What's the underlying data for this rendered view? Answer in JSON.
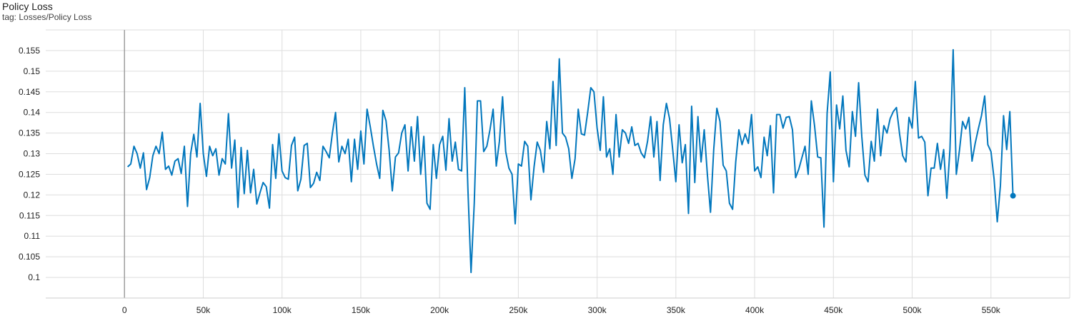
{
  "card": {
    "title": "Policy Loss",
    "tag": "tag: Losses/Policy Loss"
  },
  "chart_data": {
    "type": "line",
    "title": "Policy Loss",
    "xlabel": "",
    "ylabel": "",
    "xlim": [
      -50000,
      600000
    ],
    "ylim": [
      0.095,
      0.16
    ],
    "xticks": [
      0,
      50000,
      100000,
      150000,
      200000,
      250000,
      300000,
      350000,
      400000,
      450000,
      500000,
      550000
    ],
    "xtick_labels": [
      "0",
      "50k",
      "100k",
      "150k",
      "200k",
      "250k",
      "300k",
      "350k",
      "400k",
      "450k",
      "500k",
      "550k"
    ],
    "yticks": [
      0.1,
      0.105,
      0.11,
      0.115,
      0.12,
      0.125,
      0.13,
      0.135,
      0.14,
      0.145,
      0.15,
      0.155
    ],
    "ytick_labels": [
      "0.1",
      "0.105",
      "0.11",
      "0.115",
      "0.12",
      "0.125",
      "0.13",
      "0.135",
      "0.14",
      "0.145",
      "0.15",
      "0.155"
    ],
    "grid": true,
    "series_color": "#0277bd",
    "grid_color": "#dddddd",
    "series": [
      {
        "points": [
          [
            2000,
            0.1268
          ],
          [
            4000,
            0.1275
          ],
          [
            6000,
            0.1318
          ],
          [
            8000,
            0.13
          ],
          [
            10000,
            0.1265
          ],
          [
            12000,
            0.1302
          ],
          [
            14000,
            0.1213
          ],
          [
            16000,
            0.1242
          ],
          [
            18000,
            0.1295
          ],
          [
            20000,
            0.1318
          ],
          [
            22000,
            0.13
          ],
          [
            24000,
            0.1352
          ],
          [
            26000,
            0.1262
          ],
          [
            28000,
            0.127
          ],
          [
            30000,
            0.1248
          ],
          [
            32000,
            0.1282
          ],
          [
            34000,
            0.1288
          ],
          [
            36000,
            0.1252
          ],
          [
            38000,
            0.1318
          ],
          [
            40000,
            0.1172
          ],
          [
            42000,
            0.13
          ],
          [
            44000,
            0.1347
          ],
          [
            46000,
            0.1292
          ],
          [
            48000,
            0.1422
          ],
          [
            50000,
            0.13
          ],
          [
            52000,
            0.1245
          ],
          [
            54000,
            0.1318
          ],
          [
            56000,
            0.1295
          ],
          [
            58000,
            0.1312
          ],
          [
            60000,
            0.1248
          ],
          [
            62000,
            0.1288
          ],
          [
            64000,
            0.1275
          ],
          [
            66000,
            0.1397
          ],
          [
            68000,
            0.1265
          ],
          [
            70000,
            0.1333
          ],
          [
            72000,
            0.117
          ],
          [
            74000,
            0.1315
          ],
          [
            76000,
            0.1203
          ],
          [
            78000,
            0.1308
          ],
          [
            80000,
            0.1205
          ],
          [
            82000,
            0.1262
          ],
          [
            84000,
            0.1178
          ],
          [
            86000,
            0.1205
          ],
          [
            88000,
            0.123
          ],
          [
            90000,
            0.122
          ],
          [
            92000,
            0.1168
          ],
          [
            94000,
            0.1322
          ],
          [
            96000,
            0.124
          ],
          [
            98000,
            0.1348
          ],
          [
            100000,
            0.1258
          ],
          [
            102000,
            0.1242
          ],
          [
            104000,
            0.1238
          ],
          [
            106000,
            0.132
          ],
          [
            108000,
            0.134
          ],
          [
            110000,
            0.121
          ],
          [
            112000,
            0.1238
          ],
          [
            114000,
            0.132
          ],
          [
            116000,
            0.1325
          ],
          [
            118000,
            0.1218
          ],
          [
            120000,
            0.1228
          ],
          [
            122000,
            0.1255
          ],
          [
            124000,
            0.1235
          ],
          [
            126000,
            0.1318
          ],
          [
            128000,
            0.1305
          ],
          [
            130000,
            0.129
          ],
          [
            132000,
            0.135
          ],
          [
            134000,
            0.14
          ],
          [
            136000,
            0.128
          ],
          [
            138000,
            0.1318
          ],
          [
            140000,
            0.13
          ],
          [
            142000,
            0.1335
          ],
          [
            144000,
            0.1232
          ],
          [
            146000,
            0.1335
          ],
          [
            148000,
            0.1262
          ],
          [
            150000,
            0.1355
          ],
          [
            152000,
            0.1275
          ],
          [
            154000,
            0.1408
          ],
          [
            156000,
            0.1365
          ],
          [
            158000,
            0.1318
          ],
          [
            160000,
            0.1275
          ],
          [
            162000,
            0.124
          ],
          [
            164000,
            0.1405
          ],
          [
            166000,
            0.138
          ],
          [
            168000,
            0.1308
          ],
          [
            170000,
            0.121
          ],
          [
            172000,
            0.1292
          ],
          [
            174000,
            0.1302
          ],
          [
            176000,
            0.135
          ],
          [
            178000,
            0.137
          ],
          [
            180000,
            0.1258
          ],
          [
            182000,
            0.1365
          ],
          [
            184000,
            0.1282
          ],
          [
            186000,
            0.139
          ],
          [
            188000,
            0.125
          ],
          [
            190000,
            0.1342
          ],
          [
            192000,
            0.118
          ],
          [
            194000,
            0.1165
          ],
          [
            196000,
            0.1322
          ],
          [
            198000,
            0.124
          ],
          [
            200000,
            0.1322
          ],
          [
            202000,
            0.1342
          ],
          [
            204000,
            0.126
          ],
          [
            206000,
            0.1385
          ],
          [
            208000,
            0.1282
          ],
          [
            210000,
            0.1328
          ],
          [
            212000,
            0.1262
          ],
          [
            214000,
            0.1258
          ],
          [
            216000,
            0.146
          ],
          [
            218000,
            0.1215
          ],
          [
            220000,
            0.1012
          ],
          [
            222000,
            0.118
          ],
          [
            224000,
            0.1428
          ],
          [
            226000,
            0.1428
          ],
          [
            228000,
            0.1305
          ],
          [
            230000,
            0.1318
          ],
          [
            232000,
            0.1358
          ],
          [
            234000,
            0.1408
          ],
          [
            236000,
            0.127
          ],
          [
            238000,
            0.133
          ],
          [
            240000,
            0.1438
          ],
          [
            242000,
            0.1305
          ],
          [
            244000,
            0.1265
          ],
          [
            246000,
            0.125
          ],
          [
            248000,
            0.113
          ],
          [
            250000,
            0.1275
          ],
          [
            252000,
            0.127
          ],
          [
            254000,
            0.133
          ],
          [
            256000,
            0.1318
          ],
          [
            258000,
            0.1188
          ],
          [
            260000,
            0.1268
          ],
          [
            262000,
            0.1328
          ],
          [
            264000,
            0.1308
          ],
          [
            266000,
            0.1255
          ],
          [
            268000,
            0.1378
          ],
          [
            270000,
            0.1312
          ],
          [
            272000,
            0.1475
          ],
          [
            274000,
            0.132
          ],
          [
            276000,
            0.153
          ],
          [
            278000,
            0.135
          ],
          [
            280000,
            0.134
          ],
          [
            282000,
            0.1312
          ],
          [
            284000,
            0.124
          ],
          [
            286000,
            0.1288
          ],
          [
            288000,
            0.1408
          ],
          [
            290000,
            0.1348
          ],
          [
            292000,
            0.1345
          ],
          [
            294000,
            0.14
          ],
          [
            296000,
            0.146
          ],
          [
            298000,
            0.145
          ],
          [
            300000,
            0.1362
          ],
          [
            302000,
            0.1308
          ],
          [
            304000,
            0.1438
          ],
          [
            306000,
            0.1292
          ],
          [
            308000,
            0.1312
          ],
          [
            310000,
            0.125
          ],
          [
            312000,
            0.1395
          ],
          [
            314000,
            0.1292
          ],
          [
            316000,
            0.1358
          ],
          [
            318000,
            0.135
          ],
          [
            320000,
            0.1325
          ],
          [
            322000,
            0.1365
          ],
          [
            324000,
            0.132
          ],
          [
            326000,
            0.1325
          ],
          [
            328000,
            0.1302
          ],
          [
            330000,
            0.129
          ],
          [
            332000,
            0.133
          ],
          [
            334000,
            0.139
          ],
          [
            336000,
            0.1292
          ],
          [
            338000,
            0.1378
          ],
          [
            340000,
            0.1235
          ],
          [
            342000,
            0.137
          ],
          [
            344000,
            0.1422
          ],
          [
            346000,
            0.1385
          ],
          [
            348000,
            0.131
          ],
          [
            350000,
            0.1232
          ],
          [
            352000,
            0.137
          ],
          [
            354000,
            0.1278
          ],
          [
            356000,
            0.1322
          ],
          [
            358000,
            0.1155
          ],
          [
            360000,
            0.1415
          ],
          [
            362000,
            0.123
          ],
          [
            364000,
            0.139
          ],
          [
            366000,
            0.128
          ],
          [
            368000,
            0.1358
          ],
          [
            370000,
            0.125
          ],
          [
            372000,
            0.1158
          ],
          [
            374000,
            0.131
          ],
          [
            376000,
            0.141
          ],
          [
            378000,
            0.1378
          ],
          [
            380000,
            0.1272
          ],
          [
            382000,
            0.1258
          ],
          [
            384000,
            0.118
          ],
          [
            386000,
            0.1165
          ],
          [
            388000,
            0.128
          ],
          [
            390000,
            0.1358
          ],
          [
            392000,
            0.1322
          ],
          [
            394000,
            0.1348
          ],
          [
            396000,
            0.1325
          ],
          [
            398000,
            0.1395
          ],
          [
            400000,
            0.1258
          ],
          [
            402000,
            0.1268
          ],
          [
            404000,
            0.1242
          ],
          [
            406000,
            0.134
          ],
          [
            408000,
            0.1295
          ],
          [
            410000,
            0.1368
          ],
          [
            412000,
            0.1205
          ],
          [
            414000,
            0.1395
          ],
          [
            416000,
            0.1395
          ],
          [
            418000,
            0.1362
          ],
          [
            420000,
            0.1388
          ],
          [
            422000,
            0.139
          ],
          [
            424000,
            0.1358
          ],
          [
            426000,
            0.1242
          ],
          [
            428000,
            0.1262
          ],
          [
            430000,
            0.129
          ],
          [
            432000,
            0.1318
          ],
          [
            434000,
            0.125
          ],
          [
            436000,
            0.1428
          ],
          [
            438000,
            0.1368
          ],
          [
            440000,
            0.1292
          ],
          [
            442000,
            0.129
          ],
          [
            444000,
            0.1122
          ],
          [
            446000,
            0.1398
          ],
          [
            448000,
            0.1498
          ],
          [
            450000,
            0.1232
          ],
          [
            452000,
            0.1418
          ],
          [
            454000,
            0.136
          ],
          [
            456000,
            0.144
          ],
          [
            458000,
            0.1308
          ],
          [
            460000,
            0.1268
          ],
          [
            462000,
            0.1402
          ],
          [
            464000,
            0.1342
          ],
          [
            466000,
            0.1472
          ],
          [
            468000,
            0.1342
          ],
          [
            470000,
            0.1248
          ],
          [
            472000,
            0.1232
          ],
          [
            474000,
            0.133
          ],
          [
            476000,
            0.1282
          ],
          [
            478000,
            0.1408
          ],
          [
            480000,
            0.1295
          ],
          [
            482000,
            0.1368
          ],
          [
            484000,
            0.135
          ],
          [
            486000,
            0.1385
          ],
          [
            488000,
            0.1402
          ],
          [
            490000,
            0.1412
          ],
          [
            492000,
            0.1348
          ],
          [
            494000,
            0.1295
          ],
          [
            496000,
            0.128
          ],
          [
            498000,
            0.1388
          ],
          [
            500000,
            0.1362
          ],
          [
            502000,
            0.1475
          ],
          [
            504000,
            0.1338
          ],
          [
            506000,
            0.1342
          ],
          [
            508000,
            0.1328
          ],
          [
            510000,
            0.1198
          ],
          [
            512000,
            0.1265
          ],
          [
            514000,
            0.1265
          ],
          [
            516000,
            0.1325
          ],
          [
            518000,
            0.1262
          ],
          [
            520000,
            0.131
          ],
          [
            522000,
            0.1192
          ],
          [
            524000,
            0.131
          ],
          [
            526000,
            0.1552
          ],
          [
            528000,
            0.125
          ],
          [
            530000,
            0.1308
          ],
          [
            532000,
            0.1378
          ],
          [
            534000,
            0.136
          ],
          [
            536000,
            0.1388
          ],
          [
            538000,
            0.1282
          ],
          [
            540000,
            0.1325
          ],
          [
            542000,
            0.136
          ],
          [
            544000,
            0.1392
          ],
          [
            546000,
            0.144
          ],
          [
            548000,
            0.1322
          ],
          [
            550000,
            0.1305
          ],
          [
            552000,
            0.1238
          ],
          [
            554000,
            0.1135
          ],
          [
            556000,
            0.1222
          ],
          [
            558000,
            0.1392
          ],
          [
            560000,
            0.131
          ],
          [
            562000,
            0.1402
          ],
          [
            564000,
            0.1198
          ]
        ]
      }
    ]
  }
}
